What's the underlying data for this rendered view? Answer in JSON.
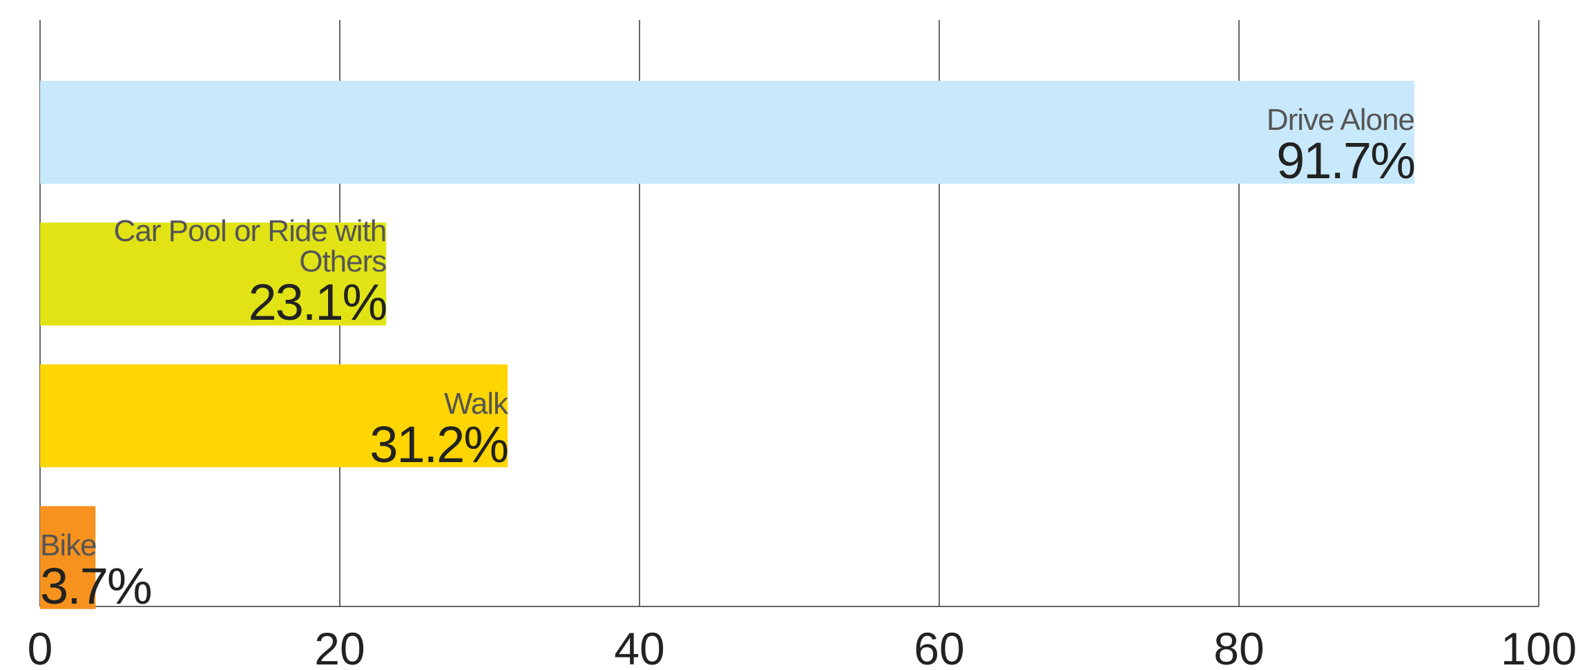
{
  "chart_data": {
    "type": "bar",
    "orientation": "horizontal",
    "categories": [
      "Drive Alone",
      "Car Pool or Ride with Others",
      "Walk",
      "Bike"
    ],
    "values": [
      91.7,
      23.1,
      31.2,
      3.7
    ],
    "value_labels": [
      "91.7%",
      "23.1%",
      "31.2%",
      "3.7%"
    ],
    "colors": [
      "#c8e9fb",
      "#e1e315",
      "#fdd500",
      "#f7921e"
    ],
    "xlim": [
      0,
      100
    ],
    "xticks": [
      0,
      20,
      40,
      60,
      80,
      100
    ],
    "grid": true
  }
}
